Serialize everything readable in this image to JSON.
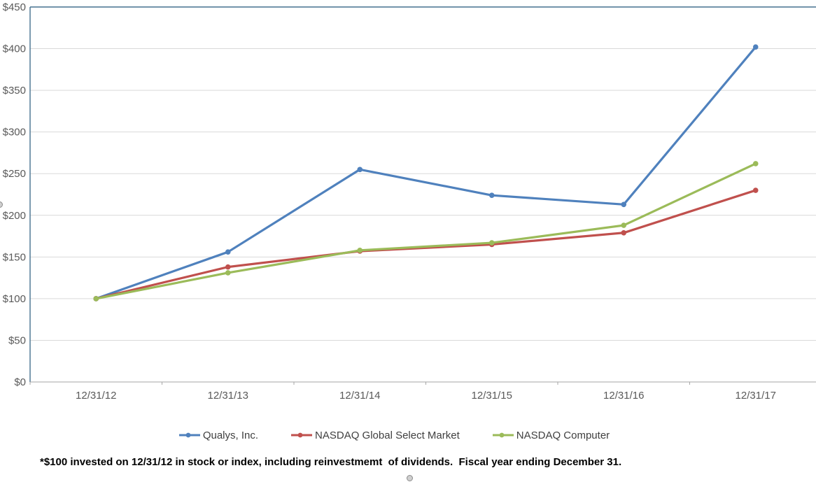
{
  "chart_data": {
    "type": "line",
    "categories": [
      "12/31/12",
      "12/31/13",
      "12/31/14",
      "12/31/15",
      "12/31/16",
      "12/31/17"
    ],
    "series": [
      {
        "name": "Qualys, Inc.",
        "color": "#4F81BD",
        "values": [
          100,
          156,
          255,
          224,
          213,
          402
        ]
      },
      {
        "name": "NASDAQ Global Select Market",
        "color": "#C0504D",
        "values": [
          100,
          138,
          157,
          165,
          179,
          230
        ]
      },
      {
        "name": "NASDAQ Computer",
        "color": "#9BBB59",
        "values": [
          100,
          131,
          158,
          167,
          188,
          262
        ]
      }
    ],
    "title": "",
    "xlabel": "",
    "ylabel": "",
    "ylim": [
      0,
      450
    ],
    "ytick_step": 50,
    "ytick_labels": [
      "$0",
      "$50",
      "$100",
      "$150",
      "$200",
      "$250",
      "$300",
      "$350",
      "$400",
      "$450"
    ],
    "grid": true,
    "legend_position": "bottom",
    "marker": "dot"
  },
  "footnote": "*$100 invested on 12/31/12 in stock or index, including reinvestmemt  of dividends.  Fiscal year ending December 31.",
  "colors": {
    "gridline": "#D9D9D9",
    "plot_border": "#45708F",
    "axis_line": "#A6A6A6",
    "tick_label": "#595959",
    "selection_handle": "#CFCFCF"
  }
}
